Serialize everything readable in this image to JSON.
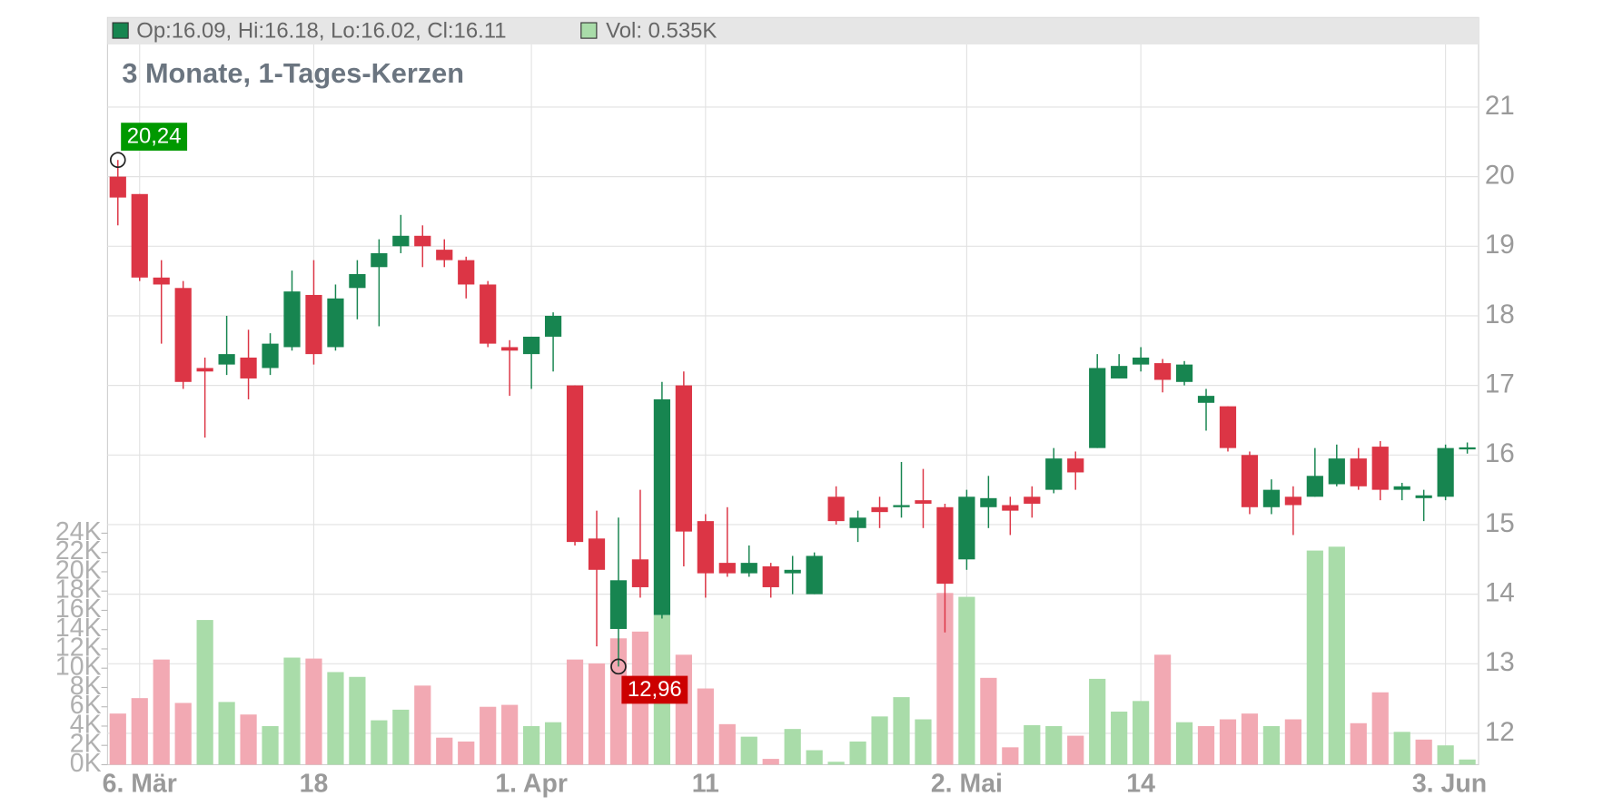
{
  "chart_data": {
    "type": "candlestick",
    "title": "3 Monate, 1-Tages-Kerzen",
    "info": "Op:16.09, Hi:16.18, Lo:16.02, Cl:16.11",
    "volume_info": "Vol: 0.535K",
    "categories": [
      null,
      "6. Mär",
      null,
      null,
      null,
      null,
      null,
      null,
      null,
      "18",
      null,
      null,
      null,
      null,
      null,
      null,
      null,
      null,
      null,
      "1. Apr",
      null,
      null,
      null,
      null,
      null,
      null,
      null,
      "11",
      null,
      null,
      null,
      null,
      null,
      null,
      null,
      null,
      null,
      null,
      null,
      "2. Mai",
      null,
      null,
      null,
      null,
      null,
      null,
      null,
      "14",
      null,
      null,
      null,
      null,
      null,
      null,
      null,
      null,
      null,
      null,
      null,
      null,
      null,
      "3. Jun",
      null
    ],
    "open": [
      20.0,
      19.75,
      18.55,
      18.4,
      17.25,
      17.3,
      17.4,
      17.25,
      17.55,
      18.3,
      17.55,
      18.4,
      18.7,
      19.0,
      19.15,
      18.95,
      18.8,
      18.45,
      17.55,
      17.45,
      17.7,
      17.0,
      14.8,
      13.5,
      14.5,
      13.7,
      17.0,
      15.05,
      14.45,
      14.3,
      14.4,
      14.3,
      14.0,
      15.4,
      14.95,
      15.25,
      15.25,
      15.35,
      15.25,
      14.5,
      15.25,
      15.28,
      15.4,
      15.5,
      15.95,
      16.1,
      17.1,
      17.3,
      17.32,
      17.05,
      16.75,
      16.7,
      16.0,
      15.25,
      15.4,
      15.4,
      15.58,
      15.95,
      16.12,
      15.5,
      15.38,
      15.4,
      16.09
    ],
    "high": [
      20.24,
      19.75,
      18.8,
      18.5,
      17.4,
      18.0,
      17.8,
      17.75,
      18.65,
      18.8,
      18.45,
      18.8,
      19.1,
      19.45,
      19.3,
      19.1,
      18.85,
      18.5,
      17.65,
      17.7,
      18.05,
      17.0,
      15.2,
      15.1,
      15.5,
      17.05,
      17.2,
      15.15,
      15.25,
      14.7,
      14.45,
      14.55,
      14.6,
      15.55,
      15.2,
      15.4,
      15.9,
      15.8,
      15.3,
      15.5,
      15.7,
      15.4,
      15.55,
      16.1,
      16.05,
      17.45,
      17.45,
      17.55,
      17.38,
      17.35,
      16.95,
      16.7,
      16.05,
      15.65,
      15.55,
      16.1,
      16.15,
      16.1,
      16.2,
      15.6,
      15.5,
      16.15,
      16.18
    ],
    "low": [
      19.3,
      18.5,
      17.6,
      16.95,
      16.25,
      17.15,
      16.8,
      17.15,
      17.5,
      17.3,
      17.5,
      17.95,
      17.85,
      18.9,
      18.7,
      18.7,
      18.25,
      17.55,
      16.85,
      16.95,
      17.2,
      14.7,
      13.25,
      12.96,
      13.95,
      13.65,
      14.4,
      13.95,
      14.25,
      14.25,
      13.95,
      14.0,
      14.0,
      15.0,
      14.75,
      14.95,
      15.1,
      14.95,
      13.45,
      14.35,
      14.95,
      14.85,
      15.1,
      15.45,
      15.5,
      16.1,
      17.1,
      17.2,
      16.9,
      17.0,
      16.35,
      16.05,
      15.15,
      15.15,
      14.85,
      15.4,
      15.55,
      15.5,
      15.35,
      15.35,
      15.05,
      15.35,
      16.02
    ],
    "close": [
      19.7,
      18.55,
      18.45,
      17.05,
      17.2,
      17.45,
      17.1,
      17.6,
      18.35,
      17.45,
      18.25,
      18.6,
      18.9,
      19.15,
      19.0,
      18.8,
      18.45,
      17.6,
      17.5,
      17.7,
      18.0,
      14.75,
      14.35,
      14.2,
      14.1,
      16.8,
      14.9,
      14.3,
      14.3,
      14.45,
      14.1,
      14.35,
      14.55,
      15.05,
      15.1,
      15.18,
      15.28,
      15.3,
      14.15,
      15.4,
      15.38,
      15.2,
      15.3,
      15.95,
      15.75,
      17.25,
      17.28,
      17.4,
      17.08,
      17.3,
      16.85,
      16.1,
      15.25,
      15.5,
      15.28,
      15.7,
      15.95,
      15.55,
      15.5,
      15.55,
      15.42,
      16.1,
      16.11
    ],
    "volume": [
      5.3,
      6.9,
      10.9,
      6.4,
      15,
      6.5,
      5.2,
      4,
      11.1,
      11,
      9.6,
      9.1,
      4.6,
      5.7,
      8.2,
      2.8,
      2.4,
      6,
      6.2,
      4,
      4.4,
      10.9,
      10.5,
      13.1,
      13.8,
      15.5,
      11.4,
      7.9,
      4.2,
      2.9,
      0.6,
      3.7,
      1.5,
      0.3,
      2.4,
      5,
      7,
      4.7,
      17.8,
      17.4,
      9,
      1.8,
      4.1,
      4,
      3,
      8.9,
      5.5,
      6.6,
      11.4,
      4.4,
      4,
      4.7,
      5.3,
      4,
      4.7,
      22.2,
      22.6,
      4.3,
      7.5,
      3.4,
      2.6,
      2,
      0.535
    ],
    "volume_colors": [
      "#f2a9b3",
      "#f2a9b3",
      "#f2a9b3",
      "#f2a9b3",
      "#a9dca9",
      "#a9dca9",
      "#f2a9b3",
      "#a9dca9",
      "#a9dca9",
      "#f2a9b3",
      "#a9dca9",
      "#a9dca9",
      "#a9dca9",
      "#a9dca9",
      "#f2a9b3",
      "#f2a9b3",
      "#f2a9b3",
      "#f2a9b3",
      "#f2a9b3",
      "#a9dca9",
      "#a9dca9",
      "#f2a9b3",
      "#f2a9b3",
      "#f2a9b3",
      "#f2a9b3",
      "#a9dca9",
      "#f2a9b3",
      "#f2a9b3",
      "#f2a9b3",
      "#a9dca9",
      "#f2a9b3",
      "#a9dca9",
      "#a9dca9",
      "#a9dca9",
      "#a9dca9",
      "#a9dca9",
      "#a9dca9",
      "#a9dca9",
      "#f2a9b3",
      "#a9dca9",
      "#f2a9b3",
      "#f2a9b3",
      "#a9dca9",
      "#a9dca9",
      "#f2a9b3",
      "#a9dca9",
      "#a9dca9",
      "#a9dca9",
      "#f2a9b3",
      "#a9dca9",
      "#f2a9b3",
      "#f2a9b3",
      "#f2a9b3",
      "#a9dca9",
      "#f2a9b3",
      "#a9dca9",
      "#a9dca9",
      "#f2a9b3",
      "#f2a9b3",
      "#a9dca9",
      "#f2a9b3",
      "#a9dca9",
      "#a9dca9"
    ],
    "up_color": "#178550",
    "down_color": "#dc3545",
    "ylim": [
      11.55,
      21.9
    ],
    "yticks": [
      12,
      13,
      14,
      15,
      16,
      17,
      18,
      19,
      20,
      21
    ],
    "y2lim": [
      0,
      24
    ],
    "y2ticks": [
      {
        "value": 0,
        "label": "0K"
      },
      {
        "value": 2,
        "label": "2K"
      },
      {
        "value": 4,
        "label": "4K"
      },
      {
        "value": 6,
        "label": "6K"
      },
      {
        "value": 8,
        "label": "8K"
      },
      {
        "value": 10,
        "label": "10K"
      },
      {
        "value": 12,
        "label": "12K"
      },
      {
        "value": 14,
        "label": "14K"
      },
      {
        "value": 16,
        "label": "16K"
      },
      {
        "value": 18,
        "label": "18K"
      },
      {
        "value": 20,
        "label": "20K"
      },
      {
        "value": 22,
        "label": "22K"
      },
      {
        "value": 24,
        "label": "24K"
      }
    ],
    "grid": true,
    "annotations": [
      {
        "index": 0,
        "value": 20.24,
        "label": "20,24",
        "color": "#009900"
      },
      {
        "index": 23,
        "value": 12.96,
        "label": "12,96",
        "color": "#cc0000"
      }
    ]
  }
}
